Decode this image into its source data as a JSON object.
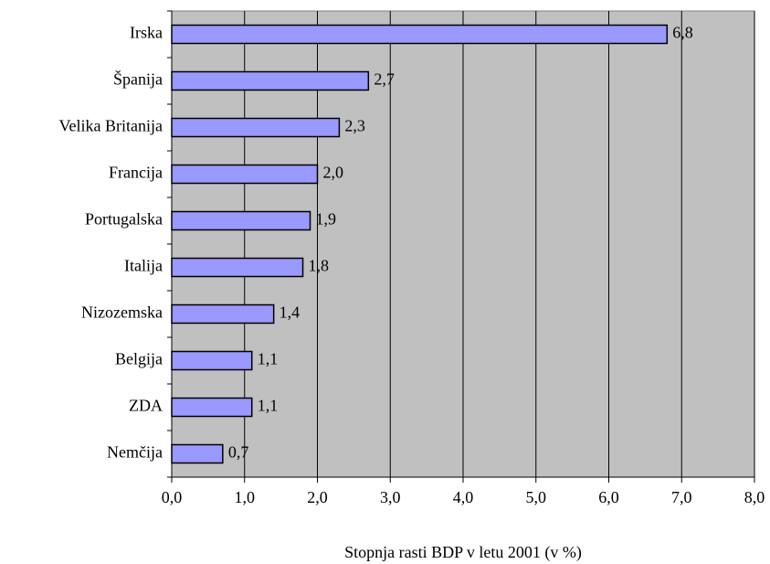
{
  "chart_data": {
    "type": "bar",
    "orientation": "horizontal",
    "x_label": "Stopnja rasti BDP v letu 2001 (v %)",
    "categories": [
      "Irska",
      "Španija",
      "Velika Britanija",
      "Francija",
      "Portugalska",
      "Italija",
      "Nizozemska",
      "Belgija",
      "ZDA",
      "Nemčija"
    ],
    "values": [
      6.8,
      2.7,
      2.3,
      2.0,
      1.9,
      1.8,
      1.4,
      1.1,
      1.1,
      0.7
    ],
    "value_labels": [
      "6,8",
      "2,7",
      "2,3",
      "2,0",
      "1,9",
      "1,8",
      "1,4",
      "1,1",
      "1,1",
      "0,7"
    ],
    "color": "#9999ff",
    "plot_background": "#c0c0c0",
    "xlim": [
      0,
      8
    ],
    "xticks": [
      {
        "value": 0,
        "label": "0,0"
      },
      {
        "value": 1,
        "label": "1,0"
      },
      {
        "value": 2,
        "label": "2,0"
      },
      {
        "value": 3,
        "label": "3,0"
      },
      {
        "value": 4,
        "label": "4,0"
      },
      {
        "value": 5,
        "label": "5,0"
      },
      {
        "value": 6,
        "label": "6,0"
      },
      {
        "value": 7,
        "label": "7,0"
      },
      {
        "value": 8,
        "label": "8,0"
      }
    ],
    "grid": true
  }
}
